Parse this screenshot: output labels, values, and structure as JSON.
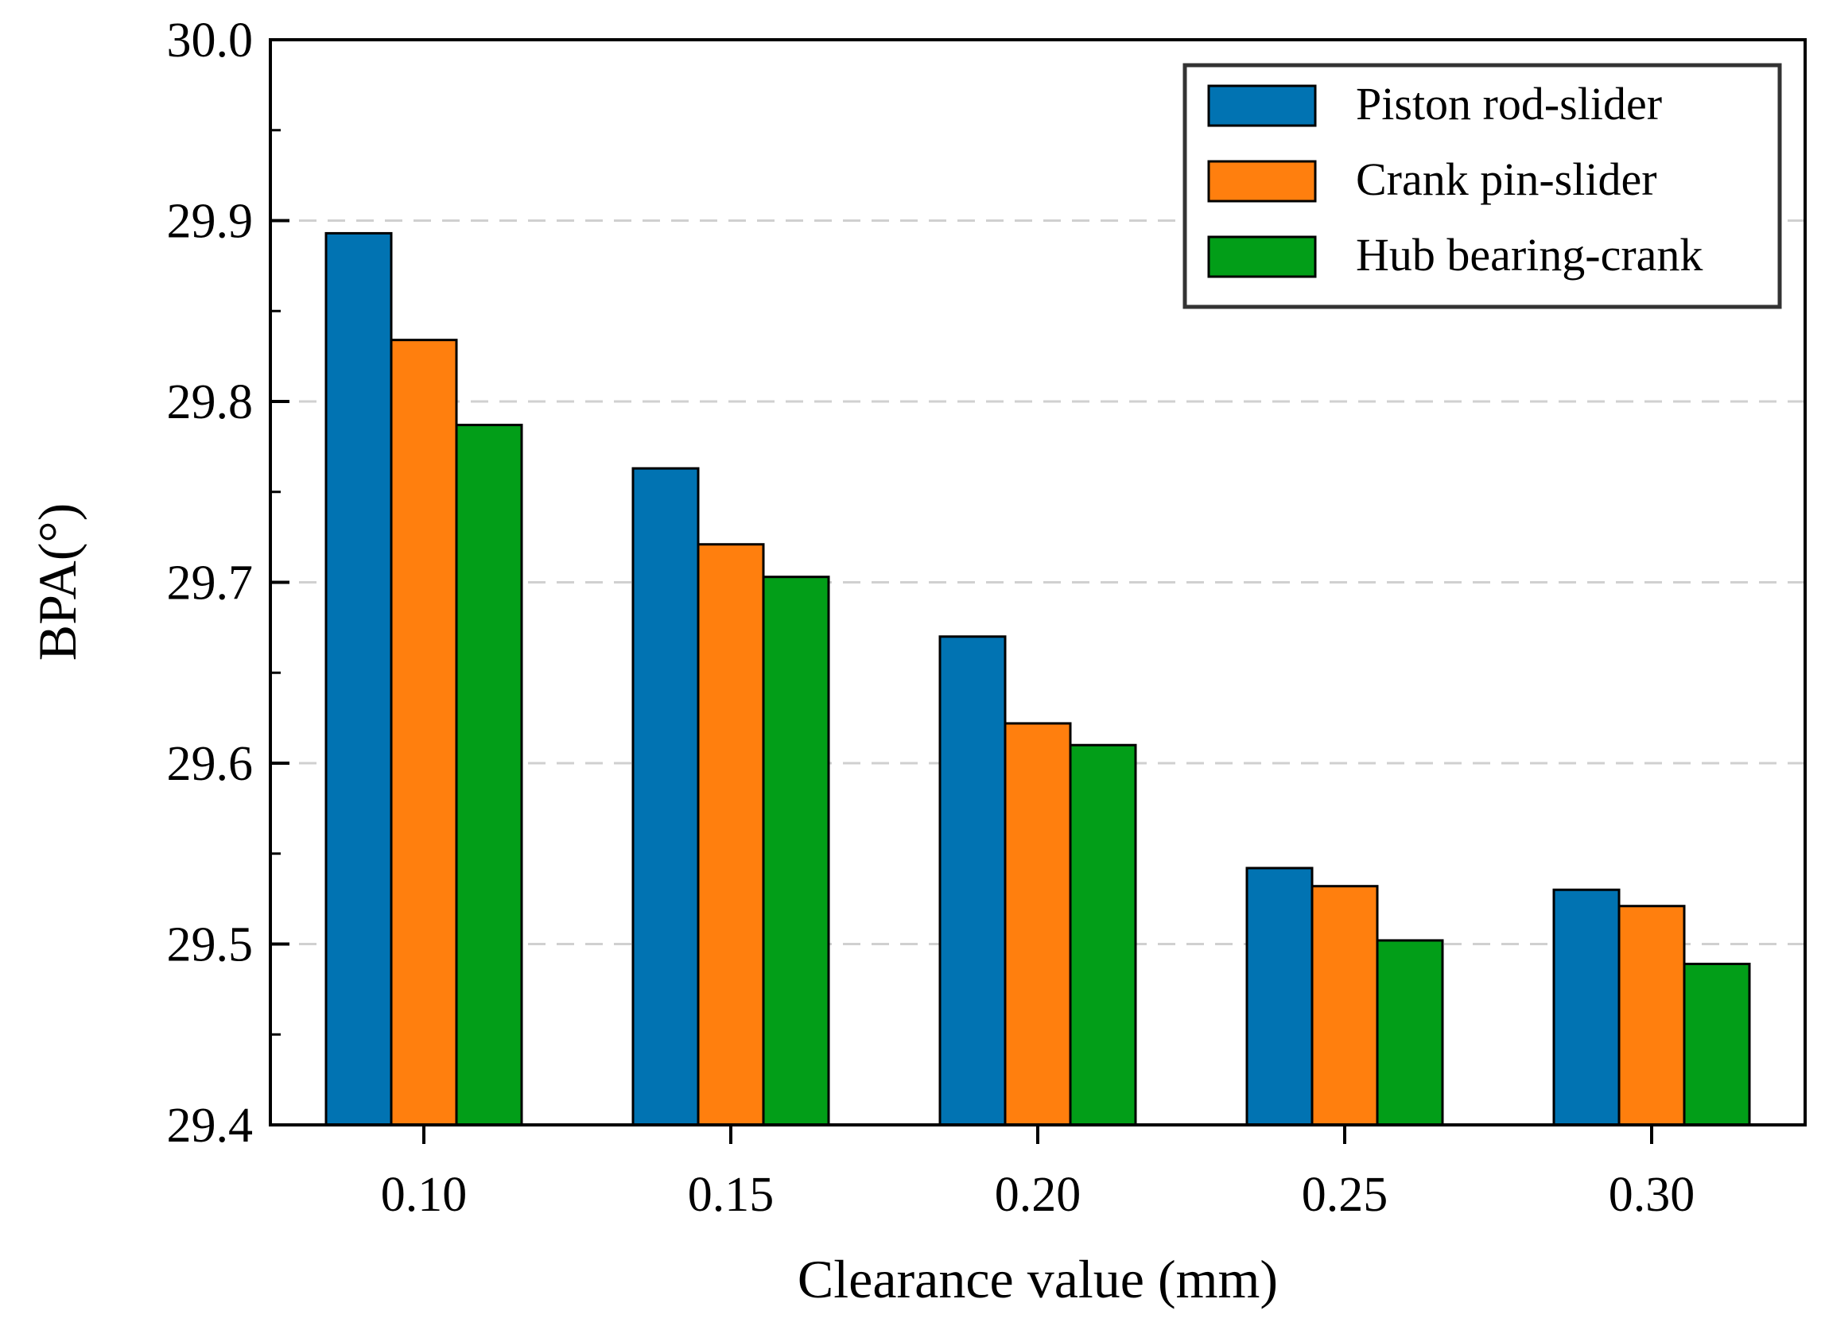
{
  "chart_data": {
    "type": "bar",
    "title": "",
    "xlabel": "Clearance value (mm)",
    "ylabel": "BPA(°)",
    "categories": [
      "0.10",
      "0.15",
      "0.20",
      "0.25",
      "0.30"
    ],
    "series": [
      {
        "name": "Piston rod-slider",
        "color": "#0173b2",
        "values": [
          29.893,
          29.763,
          29.67,
          29.542,
          29.53
        ]
      },
      {
        "name": "Crank pin-slider",
        "color": "#ff7f0e",
        "values": [
          29.834,
          29.721,
          29.622,
          29.532,
          29.521
        ]
      },
      {
        "name": "Hub bearing-crank",
        "color": "#029e18",
        "values": [
          29.787,
          29.703,
          29.61,
          29.502,
          29.489
        ]
      }
    ],
    "ylim": [
      29.4,
      30.0
    ],
    "yticks": [
      "29.4",
      "29.5",
      "29.6",
      "29.7",
      "29.8",
      "29.9",
      "30.0"
    ],
    "ytick_values": [
      29.4,
      29.5,
      29.6,
      29.7,
      29.8,
      29.9,
      30.0
    ],
    "grid": "horizontal dashed",
    "legend_position": "top-right"
  }
}
